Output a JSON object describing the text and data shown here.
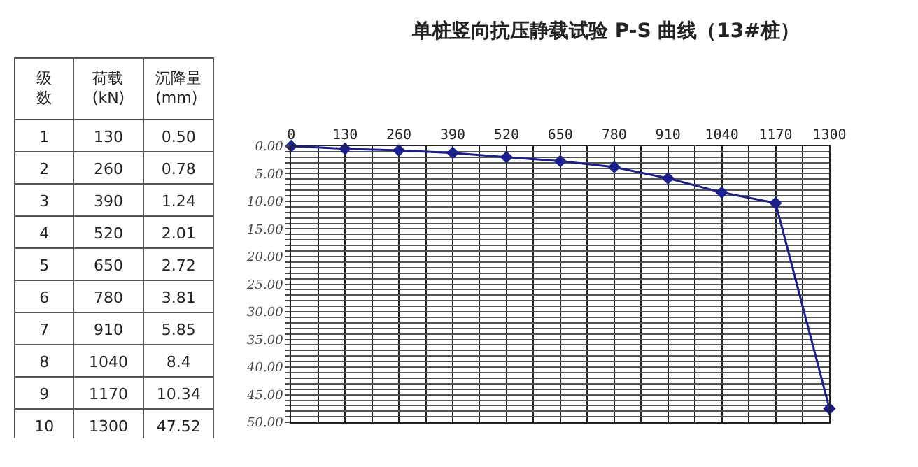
{
  "chart_data": {
    "type": "line",
    "title": "单桩竖向抗压静载试验 P-S 曲线（13#桩）",
    "x": [
      0,
      130,
      260,
      390,
      520,
      650,
      780,
      910,
      1040,
      1170,
      1300
    ],
    "series": [
      {
        "color": "#1a1f8c",
        "values": [
          0,
          0.5,
          0.78,
          1.24,
          2.01,
          2.72,
          3.81,
          5.85,
          8.4,
          10.34,
          47.52
        ]
      }
    ],
    "annotations": [
      "级",
      "数",
      "荷载",
      "(kN)",
      "沉降量",
      "(mm)",
      "1",
      "2",
      "3",
      "4",
      "5",
      "6",
      "7",
      "8",
      "9",
      "10",
      "130",
      "260",
      "390",
      "520",
      "650",
      "780",
      "910",
      "1040",
      "1170",
      "1300",
      "0.50",
      "0.78",
      "1.24",
      "2.01",
      "2.72",
      "3.81",
      "5.85",
      "8.4",
      "10.34",
      "47.52"
    ],
    "xlim": [
      0,
      1300
    ],
    "xticks": [
      0,
      {
        "value": 65,
        "label": null
      },
      130,
      {
        "value": 195,
        "label": null
      },
      260,
      {
        "value": 325,
        "label": null
      },
      390,
      {
        "value": 455,
        "label": null
      },
      520,
      {
        "value": 585,
        "label": null
      },
      650,
      {
        "value": 715,
        "label": null
      },
      780,
      {
        "value": 845,
        "label": null
      },
      910,
      {
        "value": 975,
        "label": null
      },
      1040,
      {
        "value": 1105,
        "label": null
      },
      1170,
      {
        "value": 1235,
        "label": null
      },
      1300
    ],
    "ylim": [
      50,
      0
    ],
    "yticks": [
      {
        "value": 0,
        "label": "0.00"
      },
      {
        "value": 1,
        "label": null
      },
      {
        "value": 2,
        "label": null
      },
      {
        "value": 3,
        "label": null
      },
      {
        "value": 4,
        "label": null
      },
      {
        "value": 5,
        "label": "5.00"
      },
      {
        "value": 6,
        "label": null
      },
      {
        "value": 7,
        "label": null
      },
      {
        "value": 8,
        "label": null
      },
      {
        "value": 9,
        "label": null
      },
      {
        "value": 10,
        "label": "10.00"
      },
      {
        "value": 11,
        "label": null
      },
      {
        "value": 12,
        "label": null
      },
      {
        "value": 13,
        "label": null
      },
      {
        "value": 14,
        "label": null
      },
      {
        "value": 15,
        "label": "15.00"
      },
      {
        "value": 16,
        "label": null
      },
      {
        "value": 17,
        "label": null
      },
      {
        "value": 18,
        "label": null
      },
      {
        "value": 19,
        "label": null
      },
      {
        "value": 20,
        "label": "20.00"
      },
      {
        "value": 21,
        "label": null
      },
      {
        "value": 22,
        "label": null
      },
      {
        "value": 23,
        "label": null
      },
      {
        "value": 24,
        "label": null
      },
      {
        "value": 25,
        "label": "25.00"
      },
      {
        "value": 26,
        "label": null
      },
      {
        "value": 27,
        "label": null
      },
      {
        "value": 28,
        "label": null
      },
      {
        "value": 29,
        "label": null
      },
      {
        "value": 30,
        "label": "30.00"
      },
      {
        "value": 31,
        "label": null
      },
      {
        "value": 32,
        "label": null
      },
      {
        "value": 33,
        "label": null
      },
      {
        "value": 34,
        "label": null
      },
      {
        "value": 35,
        "label": "35.00"
      },
      {
        "value": 36,
        "label": null
      },
      {
        "value": 37,
        "label": null
      },
      {
        "value": 38,
        "label": null
      },
      {
        "value": 39,
        "label": null
      },
      {
        "value": 40,
        "label": "40.00"
      },
      {
        "value": 41,
        "label": null
      },
      {
        "value": 42,
        "label": null
      },
      {
        "value": 43,
        "label": null
      },
      {
        "value": 44,
        "label": null
      },
      {
        "value": 45,
        "label": "45.00"
      },
      {
        "value": 46,
        "label": null
      },
      {
        "value": 47,
        "label": null
      },
      {
        "value": 48,
        "label": null
      },
      {
        "value": 49,
        "label": null
      },
      {
        "value": 50,
        "label": "50.00"
      }
    ],
    "grid": true,
    "marker": "diamond",
    "line_style": "solid"
  }
}
